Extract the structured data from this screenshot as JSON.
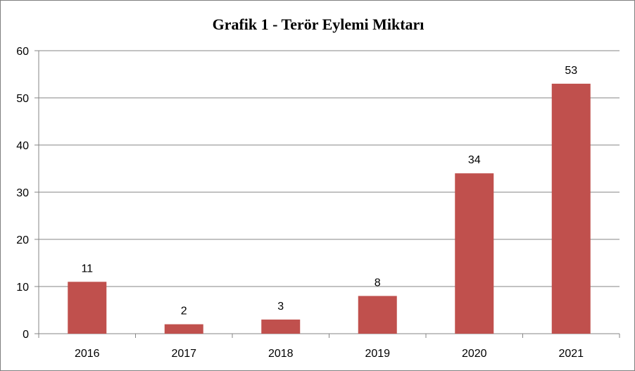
{
  "chart_data": {
    "type": "bar",
    "title": "Grafik 1 - Terör Eylemi Miktarı",
    "xlabel": "",
    "ylabel": "",
    "categories": [
      "2016",
      "2017",
      "2018",
      "2019",
      "2020",
      "2021"
    ],
    "values": [
      11,
      2,
      3,
      8,
      34,
      53
    ],
    "ylim": [
      0,
      60
    ],
    "yticks": [
      0,
      10,
      20,
      30,
      40,
      50,
      60
    ],
    "grid": true,
    "legend": "none",
    "bar_color": "#c0504d",
    "data_labels": true
  }
}
